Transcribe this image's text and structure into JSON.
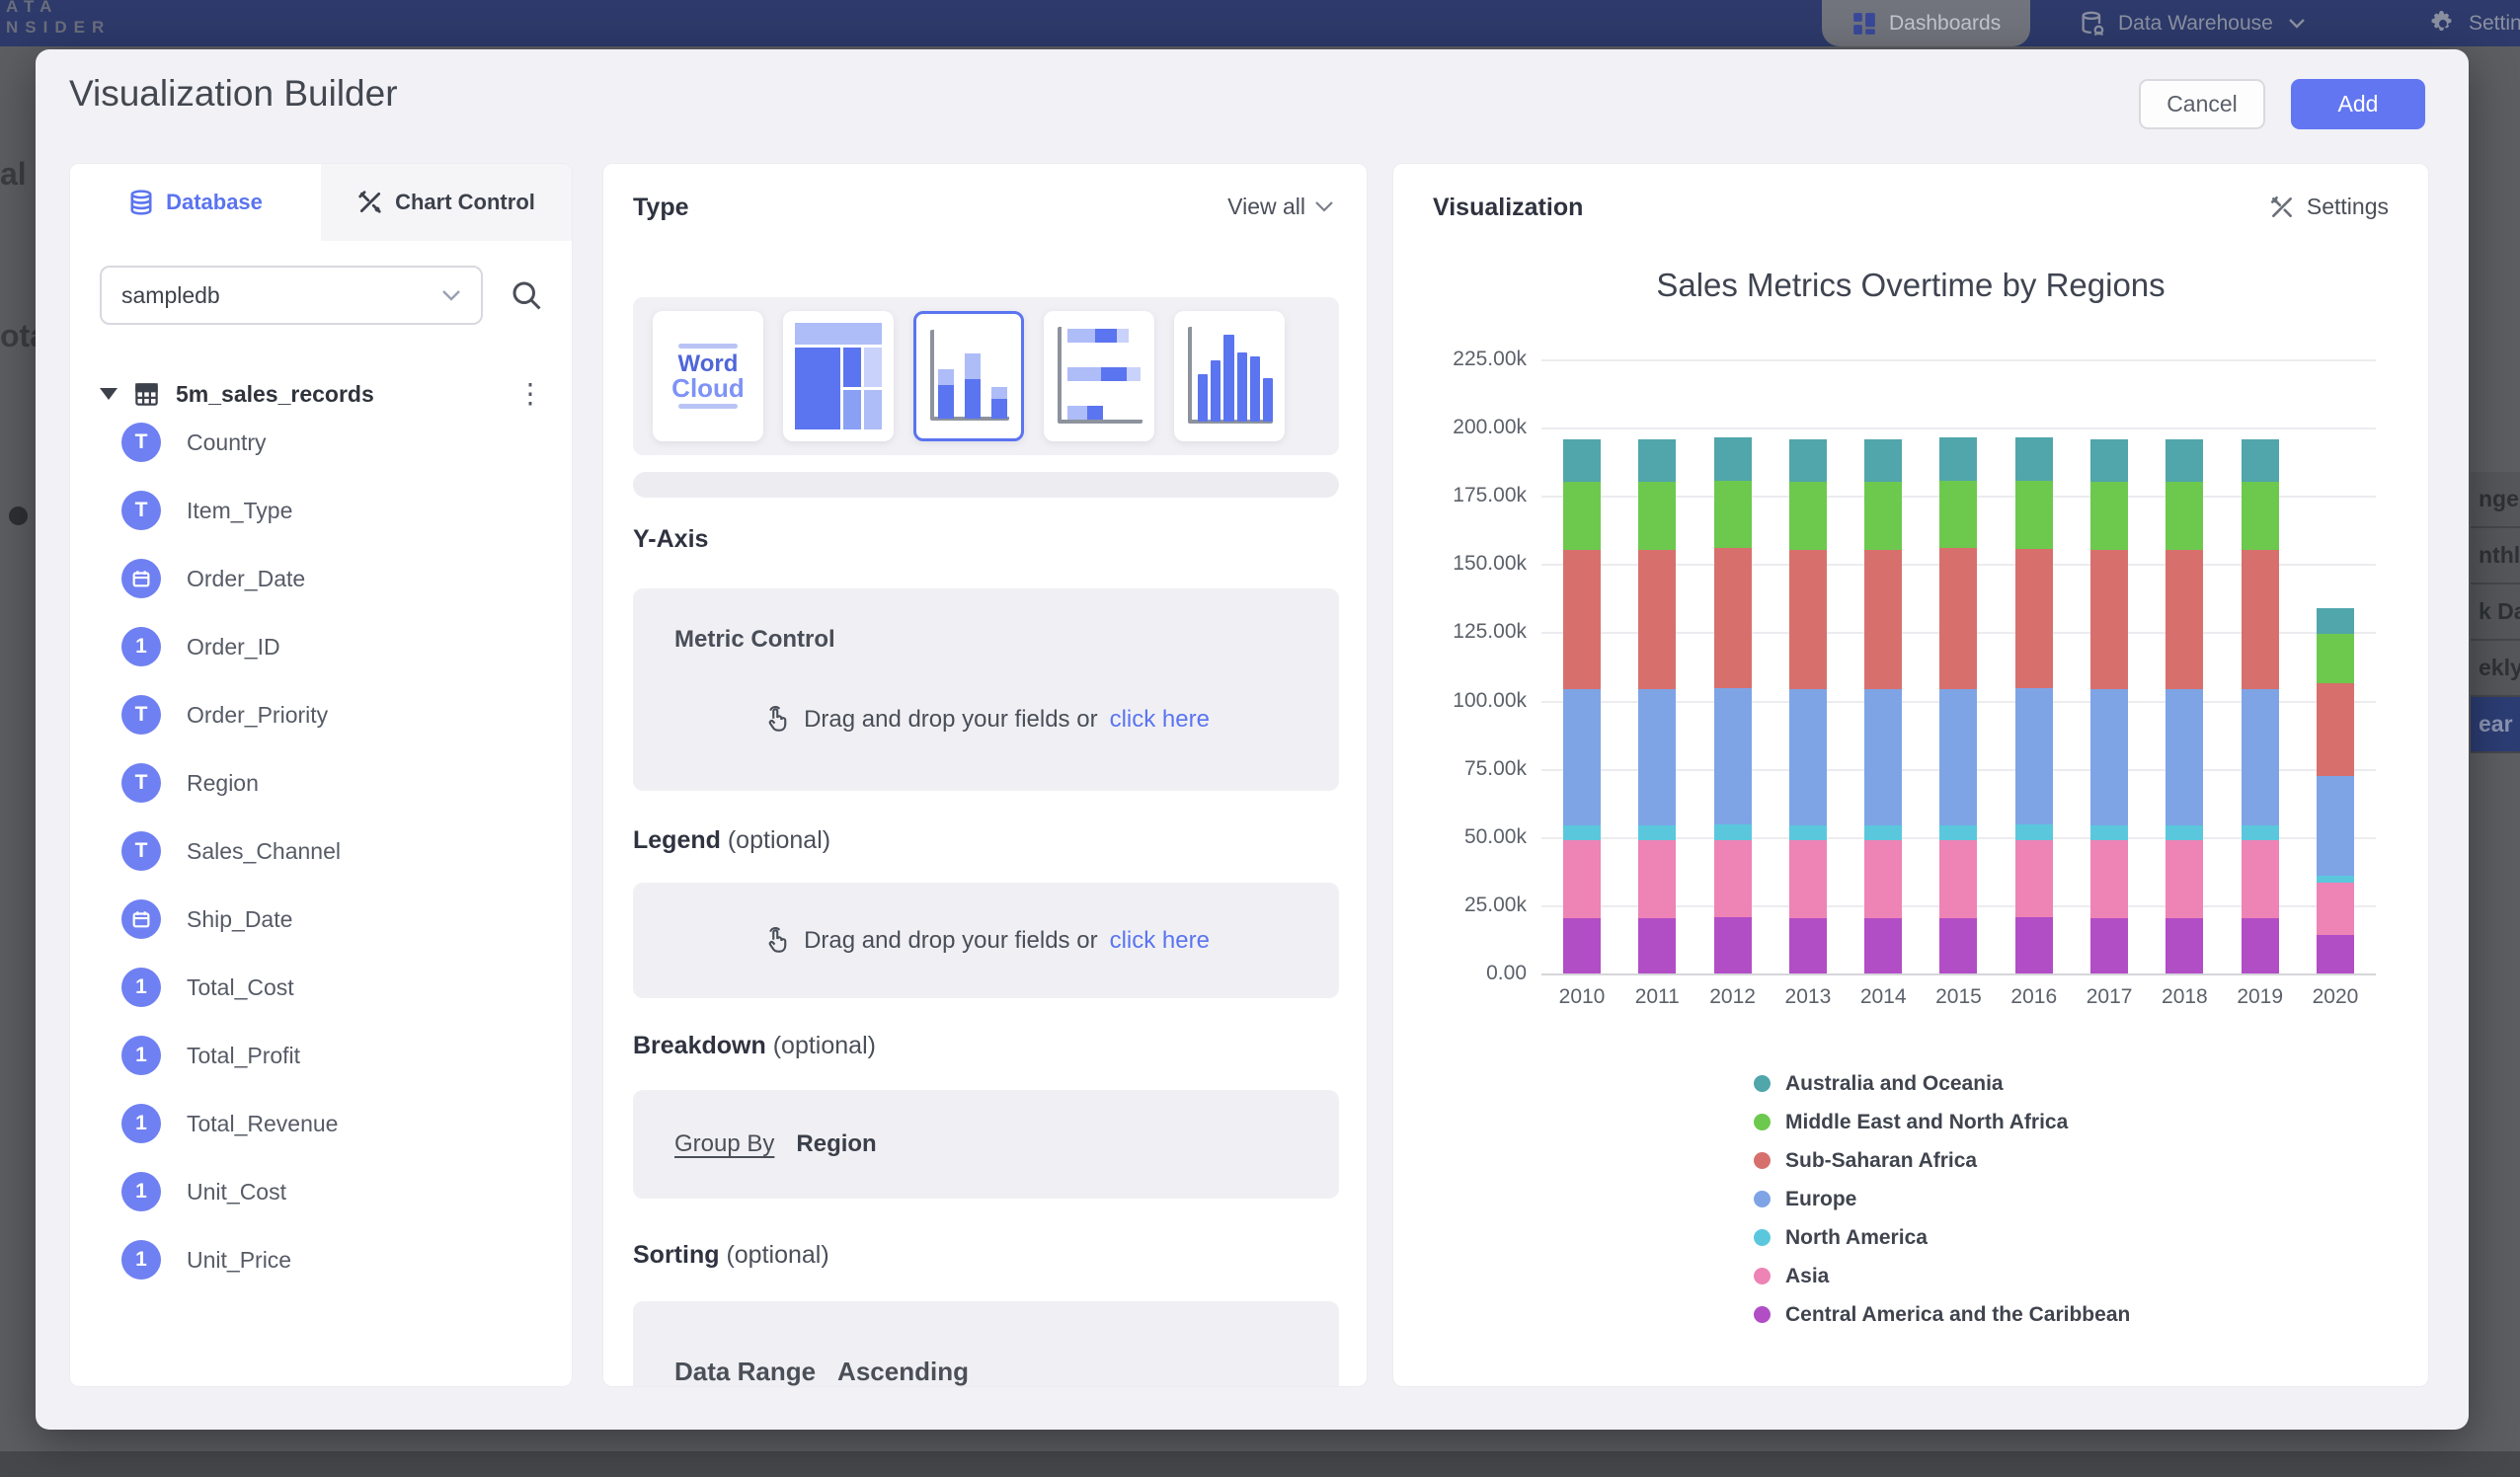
{
  "topbar": {
    "logo_line1": "ATA",
    "logo_line2": "NSIDER",
    "dashboards_label": "Dashboards",
    "warehouse_label": "Data Warehouse",
    "settings_label": "Settings"
  },
  "backdrop": {
    "left_fragments": {
      "frag1": "al",
      "frag2": "ota"
    },
    "right_menu": {
      "items": [
        "nge",
        "nthly",
        "k Date",
        "ekly",
        "ear"
      ],
      "active_index": 4
    }
  },
  "modal": {
    "title": "Visualization Builder",
    "cancel_label": "Cancel",
    "add_label": "Add"
  },
  "database_panel": {
    "tabs": {
      "database": "Database",
      "chart_control": "Chart Control"
    },
    "source_select": {
      "value": "sampledb"
    },
    "table_name": "5m_sales_records",
    "fields": [
      {
        "name": "Country",
        "type": "text"
      },
      {
        "name": "Item_Type",
        "type": "text"
      },
      {
        "name": "Order_Date",
        "type": "date"
      },
      {
        "name": "Order_ID",
        "type": "number"
      },
      {
        "name": "Order_Priority",
        "type": "text"
      },
      {
        "name": "Region",
        "type": "text"
      },
      {
        "name": "Sales_Channel",
        "type": "text"
      },
      {
        "name": "Ship_Date",
        "type": "date"
      },
      {
        "name": "Total_Cost",
        "type": "number"
      },
      {
        "name": "Total_Profit",
        "type": "number"
      },
      {
        "name": "Total_Revenue",
        "type": "number"
      },
      {
        "name": "Unit_Cost",
        "type": "number"
      },
      {
        "name": "Unit_Price",
        "type": "number"
      }
    ]
  },
  "builder_panel": {
    "type_section": {
      "title": "Type",
      "view_all_label": "View all",
      "thumbnails": [
        {
          "id": "word-cloud",
          "word1": "Word",
          "word2": "Cloud",
          "selected": false
        },
        {
          "id": "treemap",
          "selected": false
        },
        {
          "id": "stacked-column",
          "selected": true
        },
        {
          "id": "stacked-bar",
          "selected": false
        },
        {
          "id": "histogram",
          "selected": false
        }
      ]
    },
    "y_axis": {
      "title": "Y-Axis",
      "box_title": "Metric Control",
      "drag_text": "Drag and drop your fields or",
      "link_text": "click here"
    },
    "legend": {
      "title": "Legend",
      "optional": "(optional)",
      "drag_text": "Drag and drop your fields or",
      "link_text": "click here"
    },
    "breakdown": {
      "title": "Breakdown",
      "optional": "(optional)",
      "group_by_label": "Group By",
      "group_by_value": "Region"
    },
    "sorting": {
      "title": "Sorting",
      "optional": "(optional)",
      "value_label": "Data Range",
      "value_order": "Ascending"
    }
  },
  "viz_panel": {
    "title": "Visualization",
    "settings_label": "Settings"
  },
  "chart_data": {
    "type": "bar",
    "stacked": true,
    "title": "Sales Metrics Overtime by Regions",
    "categories": [
      "2010",
      "2011",
      "2012",
      "2013",
      "2014",
      "2015",
      "2016",
      "2017",
      "2018",
      "2019",
      "2020"
    ],
    "series": [
      {
        "name": "Australia and Oceania",
        "color": "#50a6ab",
        "values": [
          15.5,
          15.3,
          16.0,
          15.5,
          15.4,
          15.8,
          16.0,
          15.5,
          15.7,
          15.5,
          9.5
        ]
      },
      {
        "name": "Middle East and North Africa",
        "color": "#6cc94e",
        "values": [
          25.0,
          25.0,
          24.5,
          25.0,
          25.0,
          24.8,
          25.0,
          25.0,
          24.8,
          25.0,
          18.0
        ]
      },
      {
        "name": "Sub-Saharan Africa",
        "color": "#d7706c",
        "values": [
          51.0,
          51.0,
          51.5,
          51.0,
          51.0,
          51.5,
          51.0,
          51.0,
          51.0,
          51.0,
          34.0
        ]
      },
      {
        "name": "Europe",
        "color": "#7ea4e6",
        "values": [
          50.0,
          50.0,
          50.0,
          50.0,
          50.0,
          50.0,
          50.0,
          50.0,
          50.0,
          50.0,
          36.5
        ]
      },
      {
        "name": "North America",
        "color": "#5bc7dd",
        "values": [
          5.5,
          5.5,
          5.5,
          5.5,
          5.5,
          5.5,
          5.5,
          5.5,
          5.5,
          5.5,
          2.5
        ]
      },
      {
        "name": "Asia",
        "color": "#ee83b5",
        "values": [
          28.5,
          28.5,
          28.5,
          28.5,
          28.5,
          28.5,
          28.5,
          28.5,
          28.5,
          28.5,
          19.0
        ]
      },
      {
        "name": "Central America and the Caribbean",
        "color": "#b14dc5",
        "values": [
          20.3,
          20.3,
          20.5,
          20.3,
          20.3,
          20.3,
          20.5,
          20.3,
          20.3,
          20.3,
          14.3
        ]
      }
    ],
    "stack_order_note": "series[0] is top of stack; values in thousands",
    "unit": "k",
    "y_ticks": [
      "225.00k",
      "200.00k",
      "175.00k",
      "150.00k",
      "125.00k",
      "100.00k",
      "75.00k",
      "50.00k",
      "25.00k",
      "0.00"
    ],
    "ylim": [
      0,
      225
    ],
    "grid": true,
    "legend_position": "bottom-left"
  }
}
